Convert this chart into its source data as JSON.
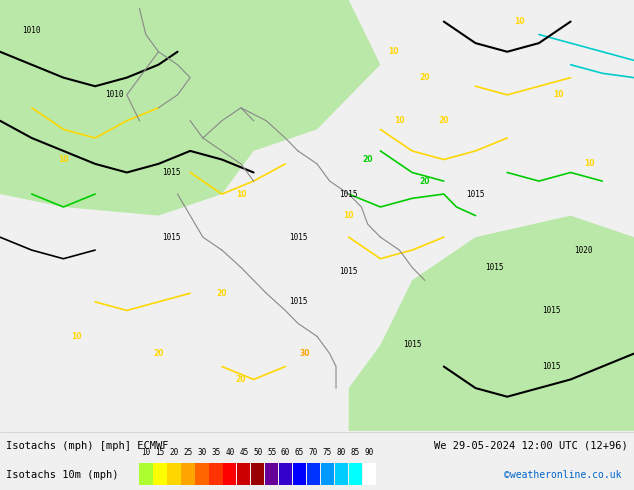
{
  "title_line1": "Isotachs (mph) [mph] ECMWF",
  "title_line2": "We 29-05-2024 12:00 UTC (12+96)",
  "legend_label": "Isotachs 10m (mph)",
  "copyright": "©weatheronline.co.uk",
  "legend_values": [
    "10",
    "15",
    "20",
    "25",
    "30",
    "35",
    "40",
    "45",
    "50",
    "55",
    "60",
    "65",
    "70",
    "75",
    "80",
    "85",
    "90"
  ],
  "legend_colors": [
    "#adff2f",
    "#ffff00",
    "#ffd700",
    "#ffa500",
    "#ff8c00",
    "#ff4500",
    "#ff0000",
    "#dc143c",
    "#c71585",
    "#8b008b",
    "#4b0082",
    "#0000cd",
    "#0000ff",
    "#1e90ff",
    "#00bfff",
    "#00ffff",
    "#ffffff"
  ],
  "bg_color": "#f0f0f0",
  "map_bg": "#ffffff",
  "bottom_bar_color": "#e8e8e8",
  "fig_width": 6.34,
  "fig_height": 4.9,
  "dpi": 100
}
